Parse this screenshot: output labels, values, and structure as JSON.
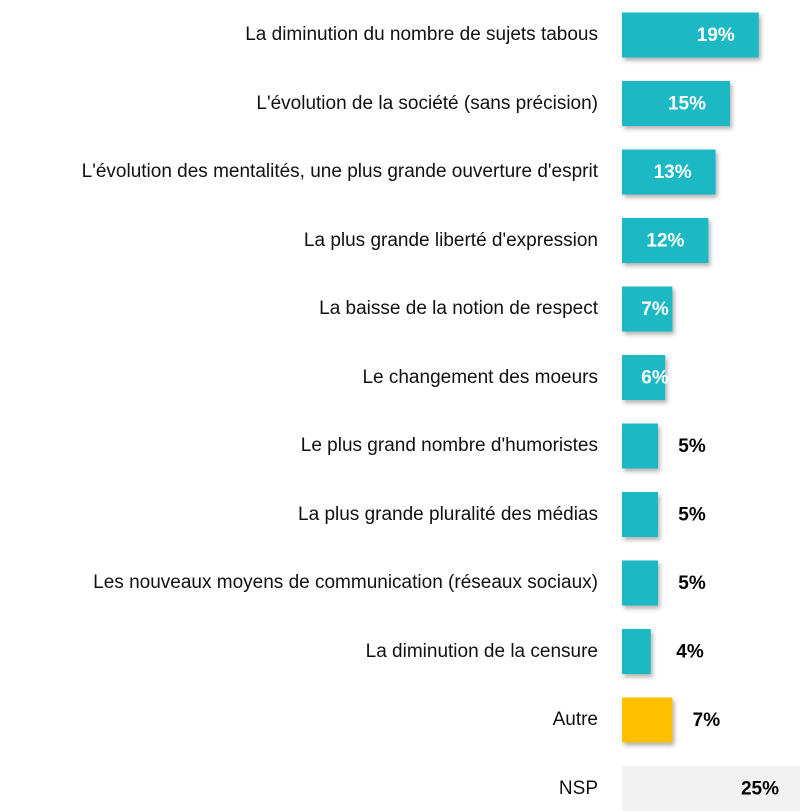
{
  "chart_data": {
    "type": "bar",
    "orientation": "horizontal",
    "categories": [
      "La diminution du nombre de sujets tabous",
      "L'évolution de la société (sans précision)",
      "L'évolution des mentalités, une plus grande ouverture d'esprit",
      "La plus grande liberté d'expression",
      "La baisse de la notion de respect",
      "Le changement des moeurs",
      "Le plus grand nombre d'humoristes",
      "La plus grande pluralité des médias",
      "Les nouveaux moyens de communication (réseaux sociaux)",
      "La diminution de la censure",
      "Autre",
      "NSP"
    ],
    "values": [
      19,
      15,
      13,
      12,
      7,
      6,
      5,
      5,
      5,
      4,
      7,
      25
    ],
    "value_labels": [
      "19%",
      "15%",
      "13%",
      "12%",
      "7%",
      "6%",
      "5%",
      "5%",
      "5%",
      "4%",
      "7%",
      "25%"
    ],
    "colors": [
      "#1bb8c3",
      "#1bb8c3",
      "#1bb8c3",
      "#1bb8c3",
      "#1bb8c3",
      "#1bb8c3",
      "#1bb8c3",
      "#1bb8c3",
      "#1bb8c3",
      "#1bb8c3",
      "#ffc000",
      "#f2f2f2"
    ]
  }
}
